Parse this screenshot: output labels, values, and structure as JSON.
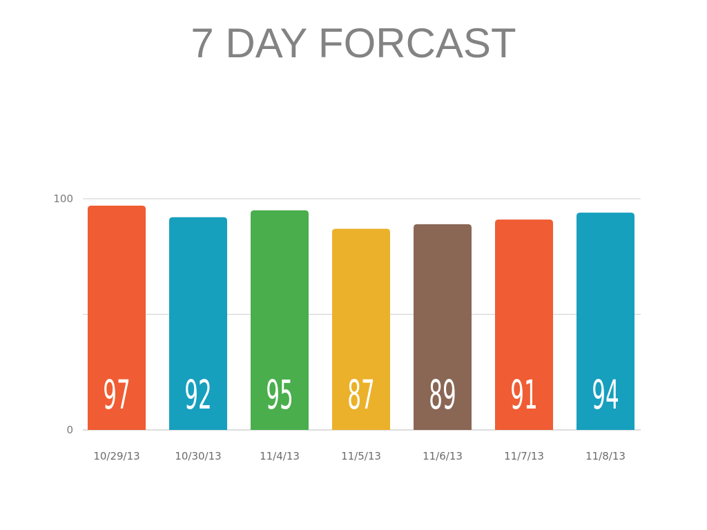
{
  "chart_data": {
    "type": "bar",
    "title": "7 DAY FORCAST",
    "categories": [
      "10/29/13",
      "10/30/13",
      "11/4/13",
      "11/5/13",
      "11/6/13",
      "11/7/13",
      "11/8/13"
    ],
    "values": [
      97,
      92,
      95,
      87,
      89,
      91,
      94
    ],
    "colors": [
      "#f05c33",
      "#179fbe",
      "#4aae4c",
      "#ebb12a",
      "#8a6655",
      "#f05c33",
      "#179fbe"
    ],
    "ylim": [
      0,
      100
    ],
    "yticks": [
      0,
      100
    ],
    "gridlines": [
      0,
      50,
      100
    ],
    "grid": true,
    "legend": "none",
    "xlabel": "",
    "ylabel": ""
  }
}
